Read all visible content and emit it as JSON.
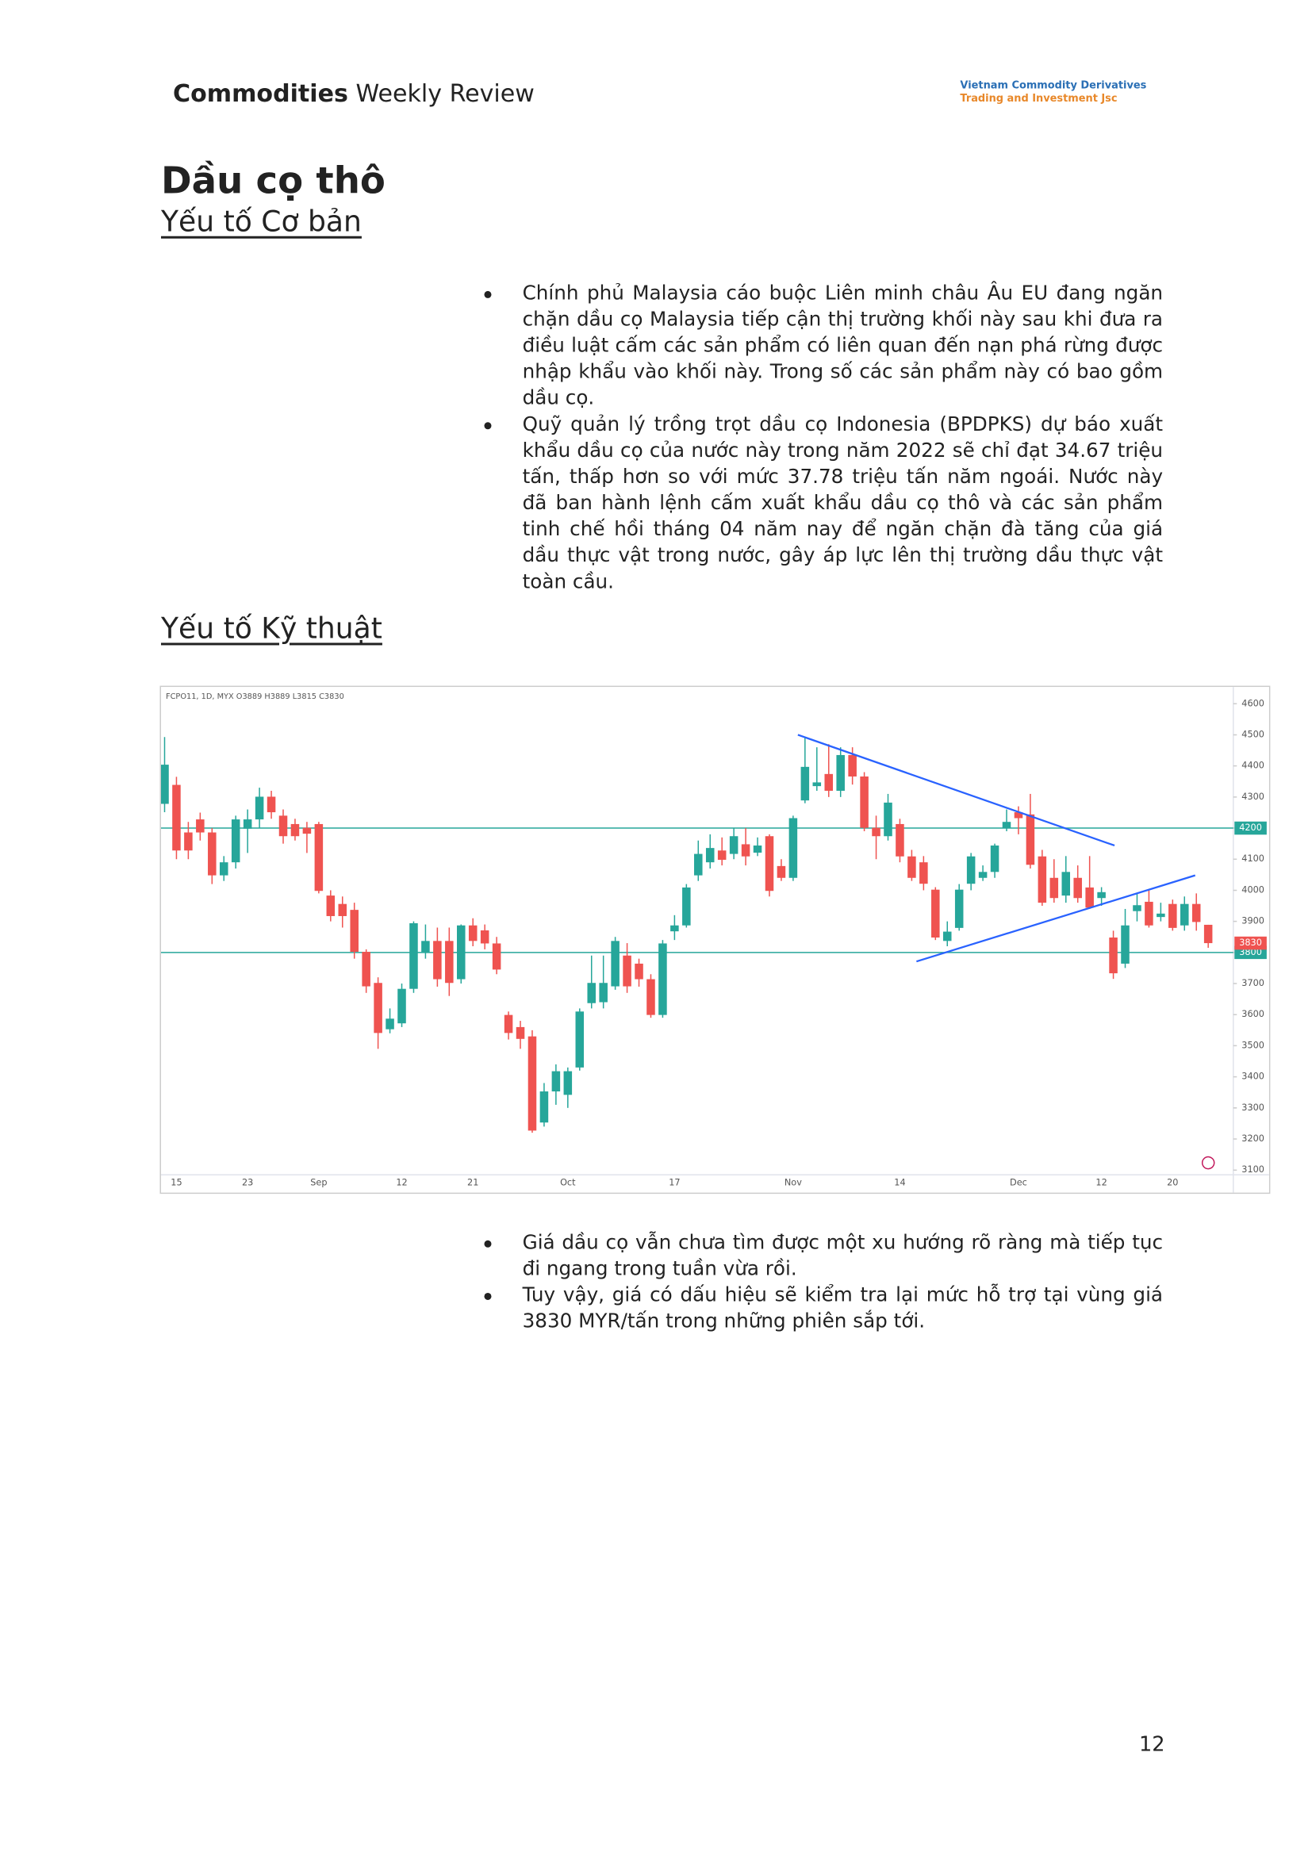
{
  "header": {
    "title_bold": "Commodities",
    "title_rest": "Weekly Review",
    "logo_line1": "Vietnam Commodity Derivatives",
    "logo_line2": "Trading and Investment Jsc"
  },
  "section": {
    "title": "Dầu cọ thô",
    "subtitle": "Yếu tố Cơ bản"
  },
  "fundamentals": [
    "Chính phủ Malaysia cáo buộc Liên minh châu Âu EU đang ngăn chặn dầu cọ Malaysia tiếp cận thị trường khối này sau khi đưa ra điều luật cấm các sản phẩm có liên quan đến nạn phá rừng được nhập khẩu vào khối này. Trong số các sản phẩm này có bao gồm dầu cọ.",
    "Quỹ quản lý trồng trọt dầu cọ Indonesia (BPDPKS) dự báo xuất khẩu dầu cọ của nước này trong năm 2022 sẽ chỉ đạt 34.67 triệu tấn, thấp hơn so với mức 37.78 triệu tấn năm ngoái. Nước này đã ban hành lệnh cấm xuất khẩu dầu cọ thô và các sản phẩm tinh chế hồi tháng 04 năm nay để ngăn chặn đà tăng của giá dầu thực vật trong nước, gây áp lực lên thị trường dầu thực vật toàn cầu."
  ],
  "technical_title": "Yếu tố Kỹ thuật",
  "chart_data": {
    "type": "candlestick",
    "header_label": "FCPO11, 1D, MYX  O3889  H3889  L3815  C3830",
    "categories": [
      null,
      "15",
      null,
      null,
      null,
      null,
      null,
      "23",
      null,
      null,
      null,
      null,
      null,
      "Sep",
      null,
      null,
      null,
      null,
      null,
      null,
      "12",
      null,
      null,
      null,
      null,
      null,
      "21",
      null,
      null,
      null,
      null,
      null,
      null,
      null,
      "Oct",
      null,
      null,
      null,
      null,
      null,
      null,
      null,
      null,
      "17",
      null,
      null,
      null,
      null,
      null,
      null,
      null,
      null,
      null,
      "Nov",
      null,
      null,
      null,
      null,
      null,
      null,
      null,
      null,
      "14",
      null,
      null,
      null,
      null,
      null,
      null,
      null,
      null,
      null,
      "Dec",
      null,
      null,
      null,
      null,
      null,
      null,
      "12",
      null,
      null,
      null,
      null,
      null,
      "20",
      null,
      null,
      null
    ],
    "open": [
      4278,
      4339,
      4186,
      4228,
      4186,
      4048,
      4090,
      4198,
      4228,
      4301,
      4240,
      4213,
      4201,
      4213,
      3983,
      3956,
      3937,
      3802,
      3702,
      3553,
      3572,
      3683,
      3799,
      3837,
      3837,
      3714,
      3887,
      3871,
      3829,
      3599,
      3560,
      3530,
      3253,
      3353,
      3342,
      3430,
      3637,
      3640,
      3691,
      3790,
      3764,
      3714,
      3599,
      3868,
      3887,
      4048,
      4090,
      4128,
      4117,
      4148,
      4121,
      4174,
      4078,
      4040,
      4289,
      4335,
      4374,
      4320,
      4435,
      4366,
      4201,
      4174,
      4213,
      4109,
      4090,
      4002,
      3837,
      3879,
      4021,
      4040,
      4059,
      4201,
      4251,
      4244,
      4109,
      4040,
      3983,
      4040,
      4009,
      3975,
      3848,
      3764,
      3933,
      3963,
      3914,
      3956,
      3887,
      3956,
      3889
    ],
    "high": [
      4493,
      4365,
      4220,
      4250,
      4200,
      4110,
      4240,
      4260,
      4330,
      4320,
      4260,
      4230,
      4220,
      4220,
      4000,
      3980,
      3960,
      3810,
      3720,
      3620,
      3700,
      3900,
      3890,
      3880,
      3880,
      3890,
      3910,
      3890,
      3850,
      3610,
      3580,
      3550,
      3380,
      3440,
      3430,
      3620,
      3790,
      3790,
      3850,
      3830,
      3780,
      3730,
      3840,
      3920,
      4020,
      4160,
      4180,
      4170,
      4200,
      4200,
      4170,
      4180,
      4100,
      4240,
      4490,
      4460,
      4470,
      4460,
      4460,
      4380,
      4240,
      4310,
      4230,
      4130,
      4110,
      4010,
      3900,
      4020,
      4120,
      4080,
      4150,
      4260,
      4270,
      4310,
      4130,
      4100,
      4110,
      4080,
      4110,
      4010,
      3870,
      3940,
      3990,
      4000,
      3960,
      3970,
      3980,
      3990,
      3889
    ],
    "low": [
      4251,
      4100,
      4100,
      4160,
      4020,
      4030,
      4070,
      4120,
      4200,
      4230,
      4150,
      4160,
      4120,
      3990,
      3900,
      3880,
      3780,
      3670,
      3490,
      3540,
      3560,
      3670,
      3780,
      3690,
      3660,
      3700,
      3820,
      3810,
      3730,
      3520,
      3490,
      3220,
      3240,
      3310,
      3300,
      3420,
      3620,
      3620,
      3680,
      3670,
      3690,
      3590,
      3590,
      3840,
      3880,
      4030,
      4070,
      4080,
      4100,
      4080,
      4110,
      3980,
      4030,
      4030,
      4280,
      4320,
      4300,
      4300,
      4340,
      4190,
      4100,
      4160,
      4090,
      4030,
      4000,
      3840,
      3820,
      3870,
      4000,
      4030,
      4040,
      4190,
      4180,
      4070,
      3950,
      3960,
      3960,
      3960,
      3940,
      3950,
      3715,
      3750,
      3900,
      3880,
      3900,
      3870,
      3870,
      3870,
      3815
    ],
    "close": [
      4404,
      4128,
      4128,
      4186,
      4048,
      4090,
      4228,
      4228,
      4301,
      4251,
      4174,
      4174,
      4182,
      3998,
      3917,
      3917,
      3802,
      3691,
      3541,
      3587,
      3683,
      3894,
      3837,
      3714,
      3702,
      3887,
      3837,
      3829,
      3745,
      3541,
      3522,
      3227,
      3353,
      3418,
      3418,
      3610,
      3702,
      3702,
      3837,
      3691,
      3714,
      3599,
      3829,
      3887,
      4009,
      4117,
      4136,
      4098,
      4174,
      4109,
      4144,
      3998,
      4040,
      4232,
      4397,
      4347,
      4320,
      4435,
      4366,
      4201,
      4174,
      4282,
      4109,
      4040,
      4021,
      3848,
      3867,
      4002,
      4109,
      4059,
      4144,
      4220,
      4232,
      4082,
      3960,
      3975,
      4059,
      3975,
      3944,
      3994,
      3733,
      3887,
      3952,
      3887,
      3925,
      3879,
      3956,
      3898,
      3830
    ],
    "up_color": "#26a69a",
    "down_color": "#ef5350",
    "ylim": [
      3085,
      4654
    ],
    "yticks": [
      3100,
      3200,
      3300,
      3400,
      3500,
      3600,
      3700,
      3800,
      3900,
      4000,
      4100,
      4200,
      4300,
      4400,
      4500,
      4600
    ],
    "grid": false,
    "price_lines": [
      {
        "value": 4200,
        "color": "#26a69a"
      },
      {
        "value": 3800,
        "color": "#26a69a"
      }
    ],
    "last_price": {
      "value": 3830,
      "color": "#ef5350"
    },
    "trendlines": [
      {
        "color": "#2962ff",
        "x": [
          53.4,
          80.1
        ],
        "y": [
          4500,
          4144
        ]
      },
      {
        "color": "#2962ff",
        "x": [
          63.4,
          86.9
        ],
        "y": [
          3771,
          4048
        ]
      }
    ]
  },
  "technical_notes": [
    "Giá dầu cọ vẫn chưa tìm được một xu hướng rõ ràng mà tiếp tục đi ngang trong tuần vừa rồi.",
    "Tuy vậy, giá có dấu hiệu sẽ kiểm tra lại mức hỗ trợ tại vùng giá 3830 MYR/tấn trong những phiên sắp tới."
  ],
  "page_number": 12
}
